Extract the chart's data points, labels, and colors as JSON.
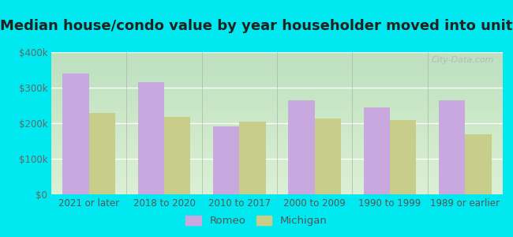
{
  "title": "Median house/condo value by year householder moved into unit",
  "categories": [
    "2021 or later",
    "2018 to 2020",
    "2010 to 2017",
    "2000 to 2009",
    "1990 to 1999",
    "1989 or earlier"
  ],
  "romeo_values": [
    340000,
    315000,
    192000,
    265000,
    245000,
    265000
  ],
  "michigan_values": [
    228000,
    218000,
    205000,
    213000,
    208000,
    168000
  ],
  "romeo_color": "#c9a8e0",
  "michigan_color": "#c8ce8a",
  "background_outer": "#00e8f0",
  "background_inner_top": "#f5fef8",
  "background_inner_bottom": "#d8eecc",
  "ylim": [
    0,
    400000
  ],
  "yticks": [
    0,
    100000,
    200000,
    300000,
    400000
  ],
  "ytick_labels": [
    "$0",
    "$100k",
    "$200k",
    "$300k",
    "$400k"
  ],
  "legend_romeo": "Romeo",
  "legend_michigan": "Michigan",
  "watermark": "City-Data.com",
  "bar_width": 0.35,
  "title_fontsize": 13,
  "tick_fontsize": 8.5,
  "legend_fontsize": 9.5
}
